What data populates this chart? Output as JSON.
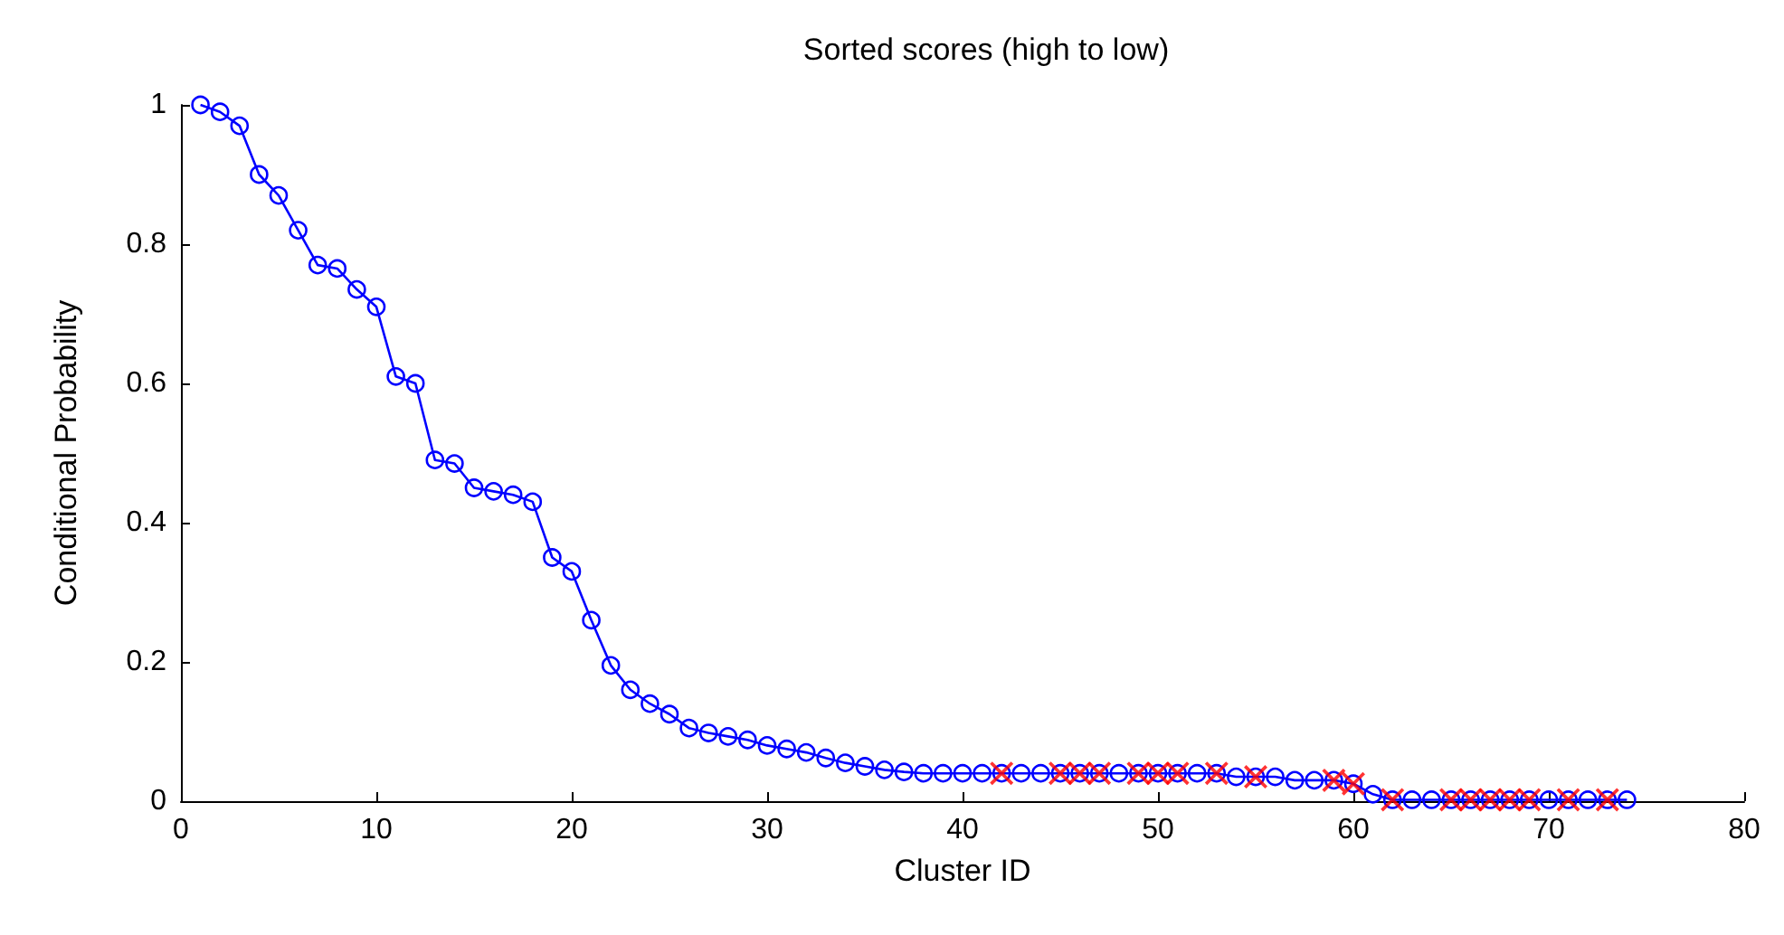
{
  "chart_data": {
    "type": "line",
    "title": "Sorted scores (high to low)",
    "xlabel": "Cluster ID",
    "ylabel": "Conditional Probability",
    "xlim": [
      0,
      80
    ],
    "xticks": [
      0,
      10,
      20,
      30,
      40,
      50,
      60,
      70,
      80
    ],
    "ylim": [
      0,
      1
    ],
    "yticks": [
      0,
      0.2,
      0.4,
      0.6,
      0.8,
      1
    ],
    "grid": false,
    "series": [
      {
        "type": "line",
        "color": "#0000ff",
        "marker": "circle",
        "line_style": "solid",
        "x": [
          1,
          2,
          3,
          4,
          5,
          6,
          7,
          8,
          9,
          10,
          11,
          12,
          13,
          14,
          15,
          16,
          17,
          18,
          19,
          20,
          21,
          22,
          23,
          24,
          25,
          26,
          27,
          28,
          29,
          30,
          31,
          32,
          33,
          34,
          35,
          36,
          37,
          38,
          39,
          40,
          41,
          42,
          43,
          44,
          45,
          46,
          47,
          48,
          49,
          50,
          51,
          52,
          53,
          54,
          55,
          56,
          57,
          58,
          59,
          60,
          61,
          62,
          63,
          64,
          65,
          66,
          67,
          68,
          69,
          70,
          71,
          72,
          73,
          74
        ],
        "values": [
          1,
          0.99,
          0.97,
          0.9,
          0.87,
          0.82,
          0.77,
          0.765,
          0.735,
          0.71,
          0.61,
          0.6,
          0.49,
          0.485,
          0.45,
          0.445,
          0.44,
          0.43,
          0.35,
          0.33,
          0.26,
          0.195,
          0.16,
          0.14,
          0.125,
          0.105,
          0.098,
          0.093,
          0.088,
          0.08,
          0.075,
          0.07,
          0.062,
          0.055,
          0.05,
          0.045,
          0.042,
          0.04,
          0.04,
          0.04,
          0.04,
          0.04,
          0.04,
          0.04,
          0.04,
          0.04,
          0.04,
          0.04,
          0.04,
          0.04,
          0.04,
          0.04,
          0.04,
          0.035,
          0.035,
          0.035,
          0.03,
          0.03,
          0.03,
          0.025,
          0.01,
          0.002,
          0.002,
          0.002,
          0.002,
          0.002,
          0.002,
          0.002,
          0.002,
          0.002,
          0.002,
          0.002,
          0.002,
          0.002
        ]
      },
      {
        "type": "scatter",
        "color": "#ff0000",
        "marker": "cross",
        "x": [
          42,
          45,
          46,
          47,
          49,
          50,
          51,
          53,
          55,
          59,
          60,
          62,
          65,
          66,
          67,
          68,
          69,
          71,
          73
        ],
        "values": [
          0.04,
          0.04,
          0.04,
          0.04,
          0.04,
          0.04,
          0.04,
          0.04,
          0.035,
          0.03,
          0.025,
          0.002,
          0.002,
          0.002,
          0.002,
          0.002,
          0.002,
          0.002,
          0.002
        ]
      }
    ]
  }
}
